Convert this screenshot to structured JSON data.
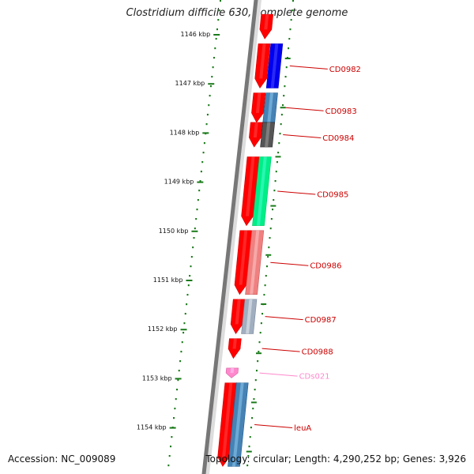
{
  "title": "Clostridium difficile 630, complete genome",
  "footer": {
    "accession": "Accession: NC_009089",
    "summary": "Topology: circular; Length: 4,290,252 bp; Genes: 3,926"
  },
  "ruler": {
    "tick_color": "#1a7a1a",
    "ticks": [
      {
        "label": "1146 kbp",
        "kbp": 1146
      },
      {
        "label": "1147 kbp",
        "kbp": 1147
      },
      {
        "label": "1148 kbp",
        "kbp": 1148
      },
      {
        "label": "1149 kbp",
        "kbp": 1149
      },
      {
        "label": "1150 kbp",
        "kbp": 1150
      },
      {
        "label": "1151 kbp",
        "kbp": 1151
      },
      {
        "label": "1152 kbp",
        "kbp": 1152
      },
      {
        "label": "1153 kbp",
        "kbp": 1153
      },
      {
        "label": "1154 kbp",
        "kbp": 1154
      }
    ]
  },
  "backbone_color": "#777777",
  "genes": [
    {
      "kbp_start": 1145.6,
      "kbp_end": 1146.1,
      "strand": "+",
      "color": "#ff0000"
    },
    {
      "kbp_start": 1146.2,
      "kbp_end": 1147.1,
      "strand": "+",
      "color": "#ff0000",
      "label": "CD0982",
      "cds_color": "#0000ee",
      "label_color": "#cc0000"
    },
    {
      "kbp_start": 1147.2,
      "kbp_end": 1147.8,
      "strand": "+",
      "color": "#ff0000",
      "label": "CD0983",
      "cds_color": "#4682b4",
      "label_color": "#cc0000"
    },
    {
      "kbp_start": 1147.8,
      "kbp_end": 1148.3,
      "strand": "+",
      "color": "#ff0000",
      "label": "CD0984",
      "cds_color": "#555555",
      "label_color": "#cc0000"
    },
    {
      "kbp_start": 1148.5,
      "kbp_end": 1149.9,
      "strand": "+",
      "color": "#ff0000",
      "label": "CD0985",
      "cds_color": "#00ee88",
      "label_color": "#cc0000"
    },
    {
      "kbp_start": 1150.0,
      "kbp_end": 1151.3,
      "strand": "+",
      "color": "#ff0000",
      "label": "CD0986",
      "cds_color": "#f08080",
      "label_color": "#cc0000"
    },
    {
      "kbp_start": 1151.4,
      "kbp_end": 1152.1,
      "strand": "+",
      "color": "#ff0000",
      "label": "CD0987",
      "cds_color": "#a0aec0",
      "label_color": "#cc0000"
    },
    {
      "kbp_start": 1152.2,
      "kbp_end": 1152.6,
      "strand": "+",
      "color": "#ff0000",
      "label": "CD0988",
      "label_color": "#cc0000"
    },
    {
      "kbp_start": 1152.8,
      "kbp_end": 1153.0,
      "strand": "+",
      "color": "#ff88cc",
      "label": "CDs021",
      "label_color": "#ff88cc"
    },
    {
      "kbp_start": 1153.1,
      "kbp_end": 1154.8,
      "strand": "+",
      "color": "#ff0000",
      "label": "leuA",
      "cds_color": "#4682b4",
      "label_color": "#cc0000"
    }
  ]
}
